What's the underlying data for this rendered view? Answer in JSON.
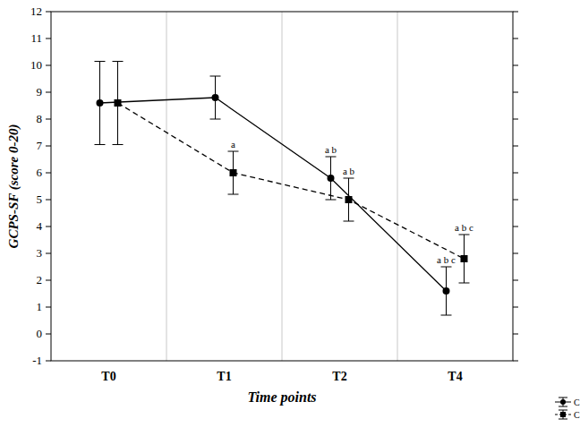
{
  "chart_data": {
    "type": "line",
    "x_label": "Time points",
    "y_label": "GCPS-SF (score 0-20)",
    "categories": [
      "T0",
      "T1",
      "T2",
      "T4"
    ],
    "ylim": [
      -1,
      12
    ],
    "yticks": [
      -1,
      0,
      1,
      2,
      3,
      4,
      5,
      6,
      7,
      8,
      9,
      10,
      11,
      12
    ],
    "legend": "bottom-right",
    "series": [
      {
        "name": "C",
        "color": "#000000",
        "marker": "circle",
        "line_style": "solid",
        "values": [
          8.6,
          8.8,
          5.8,
          1.6
        ],
        "errors": [
          1.55,
          0.8,
          0.8,
          0.9
        ],
        "annotations": [
          null,
          null,
          "a b",
          "a b c"
        ]
      },
      {
        "name": "C",
        "color": "#000000",
        "marker": "square",
        "line_style": "dashed",
        "values": [
          8.6,
          6.0,
          5.0,
          2.8
        ],
        "errors": [
          1.55,
          0.8,
          0.8,
          0.9
        ],
        "annotations": [
          null,
          "a",
          "a b",
          "a b c"
        ]
      }
    ]
  }
}
